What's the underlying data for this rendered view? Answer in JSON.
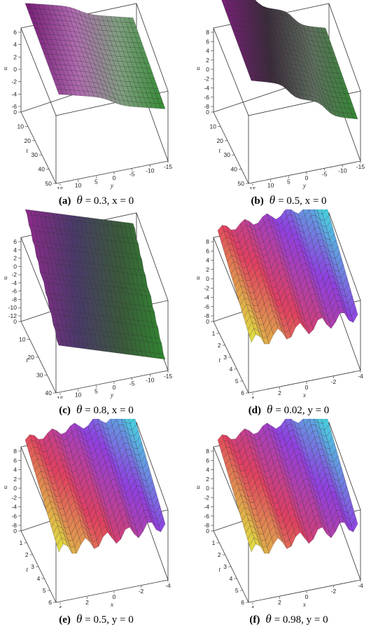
{
  "panels": [
    {
      "id": "a",
      "caption": {
        "label": "(a)",
        "symbol": "θ",
        "text": "= 0.3, x = 0"
      },
      "axes": {
        "vertical": "u",
        "depth": "t",
        "horizontal": "y"
      },
      "u_ticks": [
        "6",
        "4",
        "2",
        "0",
        "-2",
        "-4",
        "-6"
      ],
      "t_ticks": [
        "0",
        "10",
        "20",
        "30",
        "40",
        "50"
      ],
      "h_ticks": [
        "15",
        "10",
        "5",
        "0",
        "-5",
        "-10",
        "-15"
      ],
      "surface": "kink",
      "colors": [
        "#7a1f7a",
        "#b06bb0",
        "#7f9f7f",
        "#2f8a2f"
      ]
    },
    {
      "id": "b",
      "caption": {
        "label": "(b)",
        "symbol": "θ",
        "text": "= 0.5, x = 0"
      },
      "axes": {
        "vertical": "u",
        "depth": "t",
        "horizontal": "y"
      },
      "u_ticks": [
        "8",
        "6",
        "4",
        "2",
        "0",
        "-2",
        "-4",
        "-6",
        "-8"
      ],
      "t_ticks": [
        "0",
        "10",
        "20",
        "30",
        "40",
        "50"
      ],
      "h_ticks": [
        "15",
        "10",
        "5",
        "0",
        "-5",
        "-10",
        "-15"
      ],
      "surface": "kink2",
      "colors": [
        "#7a1f7a",
        "#3a2a3a",
        "#5f6f5f",
        "#2f8a2f"
      ]
    },
    {
      "id": "c",
      "caption": {
        "label": "(c)",
        "symbol": "θ",
        "text": "= 0.8, x = 0"
      },
      "axes": {
        "vertical": "u",
        "depth": "t",
        "horizontal": "y"
      },
      "u_ticks": [
        "6",
        "4",
        "2",
        "0",
        "-2",
        "-4",
        "-6",
        "-8",
        "-10",
        "-12"
      ],
      "t_ticks": [
        "0",
        "10",
        "20",
        "30",
        "40"
      ],
      "h_ticks": [
        "15",
        "10",
        "5",
        "0",
        "-5",
        "-10",
        "-15"
      ],
      "surface": "steps",
      "colors": [
        "#8a2a8a",
        "#4a3a6a",
        "#3a5a3a",
        "#2f8a2f"
      ]
    },
    {
      "id": "d",
      "caption": {
        "label": "(d)",
        "symbol": "θ",
        "text": "= 0.02, y = 0"
      },
      "axes": {
        "vertical": "u",
        "depth": "t",
        "horizontal": "x"
      },
      "u_ticks": [
        "8",
        "6",
        "4",
        "2",
        "0",
        "-2",
        "-4",
        "-6",
        "-8"
      ],
      "t_ticks": [
        "0",
        "1",
        "2",
        "3",
        "4",
        "5",
        "6"
      ],
      "h_ticks": [
        "4",
        "2",
        "0",
        "-2",
        "-4"
      ],
      "surface": "waves",
      "colors": [
        "#e0e040",
        "#e04060",
        "#9040e0",
        "#40e0e0"
      ]
    },
    {
      "id": "e",
      "caption": {
        "label": "(e)",
        "symbol": "θ",
        "text": "= 0.5, y = 0"
      },
      "axes": {
        "vertical": "u",
        "depth": "t",
        "horizontal": "x"
      },
      "u_ticks": [
        "8",
        "6",
        "4",
        "2",
        "0",
        "-2",
        "-4",
        "-6",
        "-8"
      ],
      "t_ticks": [
        "0",
        "1",
        "2",
        "3",
        "4",
        "5",
        "6"
      ],
      "h_ticks": [
        "4",
        "2",
        "0",
        "-2",
        "-4"
      ],
      "surface": "waves",
      "colors": [
        "#e0e040",
        "#e04060",
        "#9040e0",
        "#40e0e0"
      ]
    },
    {
      "id": "f",
      "caption": {
        "label": "(f)",
        "symbol": "θ",
        "text": "= 0.98, y = 0"
      },
      "axes": {
        "vertical": "u",
        "depth": "t",
        "horizontal": "x"
      },
      "u_ticks": [
        "8",
        "6",
        "4",
        "2",
        "0",
        "-2",
        "-4",
        "-6",
        "-8"
      ],
      "t_ticks": [
        "0",
        "1",
        "2",
        "3",
        "4",
        "5",
        "6"
      ],
      "h_ticks": [
        "4",
        "2",
        "0",
        "-2",
        "-4"
      ],
      "surface": "waves",
      "colors": [
        "#e0e040",
        "#e04060",
        "#9040e0",
        "#40e0e0"
      ]
    }
  ]
}
